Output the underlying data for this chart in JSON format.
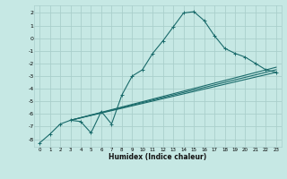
{
  "xlabel": "Humidex (Indice chaleur)",
  "bg_color": "#c6e8e4",
  "grid_color": "#aacfcc",
  "line_color": "#1a6b6b",
  "xlim": [
    -0.5,
    23.5
  ],
  "ylim": [
    -8.6,
    2.6
  ],
  "yticks": [
    2,
    1,
    0,
    -1,
    -2,
    -3,
    -4,
    -5,
    -6,
    -7,
    -8
  ],
  "xticks": [
    0,
    1,
    2,
    3,
    4,
    5,
    6,
    7,
    8,
    9,
    10,
    11,
    12,
    13,
    14,
    15,
    16,
    17,
    18,
    19,
    20,
    21,
    22,
    23
  ],
  "curve1_x": [
    0,
    1,
    2,
    3,
    4,
    5,
    6,
    7,
    8,
    9,
    10,
    11,
    12,
    13,
    14,
    15,
    16,
    17,
    18,
    19,
    20,
    21,
    22,
    23
  ],
  "curve1_y": [
    -8.3,
    -7.6,
    -6.8,
    -6.5,
    -6.6,
    -7.5,
    -5.8,
    -6.8,
    -4.5,
    -3.0,
    -2.5,
    -1.2,
    -0.2,
    0.9,
    2.0,
    2.1,
    1.4,
    0.2,
    -0.8,
    -1.2,
    -1.5,
    -2.0,
    -2.5,
    -2.7
  ],
  "line2_x": [
    3,
    23
  ],
  "line2_y": [
    -6.5,
    -2.7
  ],
  "line3_x": [
    3,
    23
  ],
  "line3_y": [
    -6.5,
    -2.5
  ],
  "line4_x": [
    3,
    23
  ],
  "line4_y": [
    -6.5,
    -2.3
  ]
}
